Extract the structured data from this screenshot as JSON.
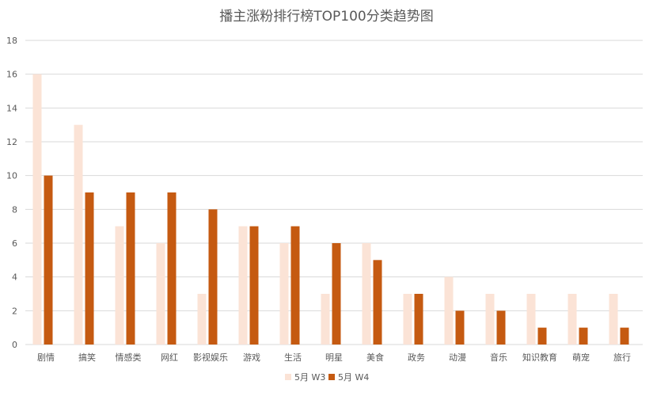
{
  "chart_data": {
    "type": "bar",
    "title": "播主涨粉排行榜TOP100分类趋势图",
    "categories": [
      "剧情",
      "搞笑",
      "情感类",
      "网红",
      "影视娱乐",
      "游戏",
      "生活",
      "明星",
      "美食",
      "政务",
      "动漫",
      "音乐",
      "知识教育",
      "萌宠",
      "旅行"
    ],
    "series": [
      {
        "name": "5月 W3",
        "color": "#fbe3d6",
        "values": [
          16,
          13,
          7,
          6,
          3,
          7,
          6,
          3,
          6,
          3,
          4,
          3,
          3,
          3,
          3
        ]
      },
      {
        "name": "5月 W4",
        "color": "#c55a11",
        "values": [
          10,
          9,
          9,
          9,
          8,
          7,
          7,
          6,
          5,
          3,
          2,
          2,
          1,
          1,
          1
        ]
      }
    ],
    "ylim": [
      0,
      18
    ],
    "yticks": [
      0,
      2,
      4,
      6,
      8,
      10,
      12,
      14,
      16,
      18
    ],
    "grid": true,
    "legend": "bottom-center"
  }
}
